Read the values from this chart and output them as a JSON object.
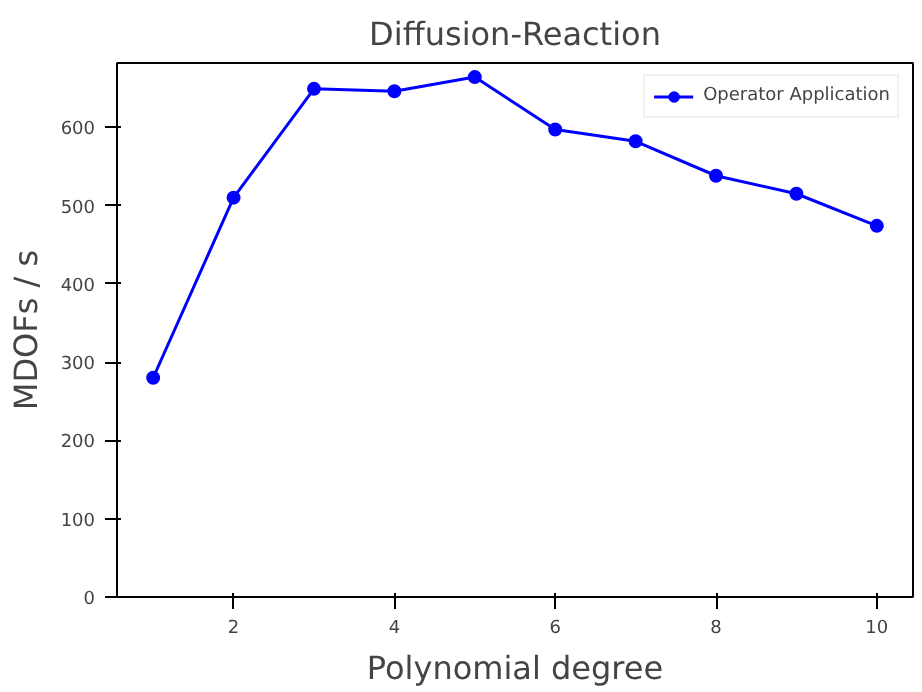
{
  "chart_data": {
    "type": "line",
    "title": "Diffusion-Reaction",
    "xlabel": "Polynomial degree",
    "ylabel": "MDOFs / s",
    "x": [
      1,
      2,
      3,
      4,
      5,
      6,
      7,
      8,
      9,
      10
    ],
    "series": [
      {
        "name": "Operator Application",
        "color": "#0000ff",
        "values": [
          280,
          510,
          649,
          646,
          664,
          597,
          582,
          538,
          515,
          474
        ]
      }
    ],
    "xlim": [
      0.55,
      10.45
    ],
    "ylim": [
      0,
      682
    ],
    "xticks": [
      2,
      4,
      6,
      8,
      10
    ],
    "yticks": [
      0,
      100,
      200,
      300,
      400,
      500,
      600
    ],
    "marker": "circle",
    "line_style": "solid",
    "legend": "top right",
    "grid": false
  }
}
